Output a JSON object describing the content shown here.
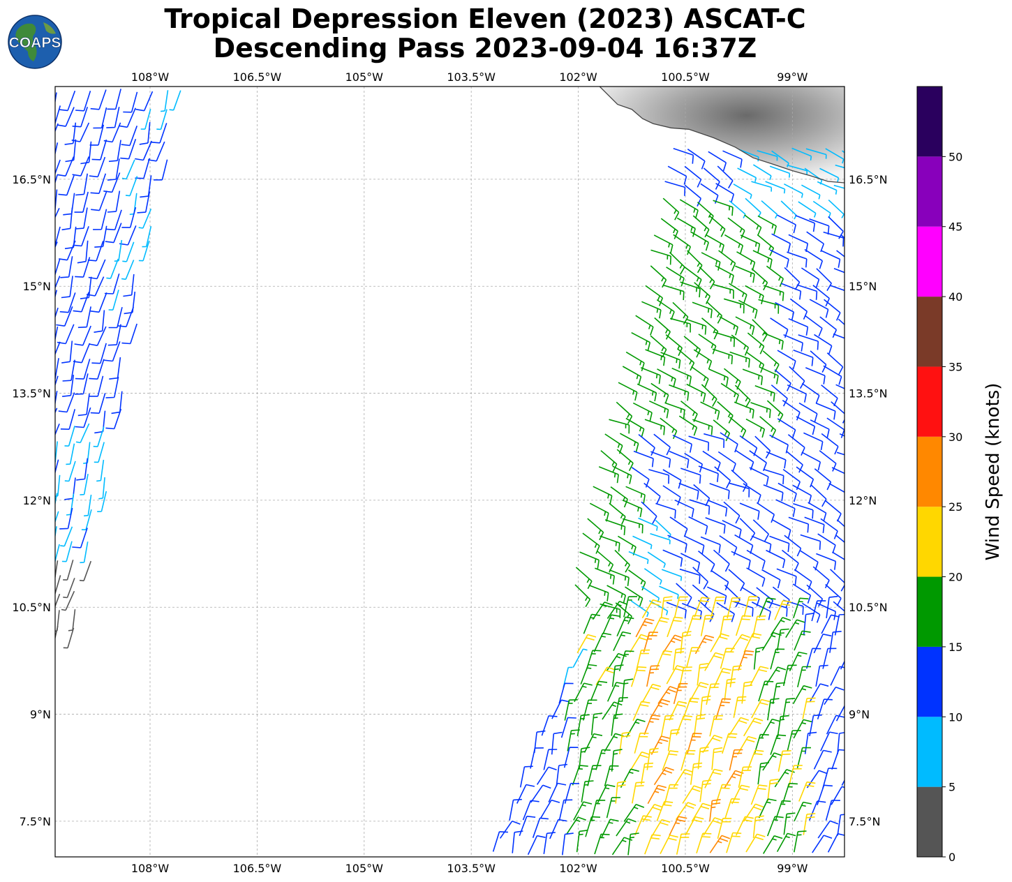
{
  "title": {
    "line1": "Tropical Depression Eleven (2023) ASCAT-C",
    "line2": "Descending Pass 2023-09-04 16:37Z"
  },
  "logo": {
    "text": "COAPS",
    "icon": "globe-icon",
    "ocean_color": "#1d5fae",
    "land_color": "#3f8a3a"
  },
  "map": {
    "lon_range": [
      -109.33,
      -98.27
    ],
    "lat_range": [
      7.0,
      17.8
    ],
    "lon_ticks": [
      {
        "value": -108,
        "label": "108°W"
      },
      {
        "value": -106.5,
        "label": "106.5°W"
      },
      {
        "value": -105,
        "label": "105°W"
      },
      {
        "value": -103.5,
        "label": "103.5°W"
      },
      {
        "value": -102,
        "label": "102°W"
      },
      {
        "value": -100.5,
        "label": "100.5°W"
      },
      {
        "value": -99,
        "label": "99°W"
      }
    ],
    "lat_ticks": [
      {
        "value": 16.5,
        "label": "16.5°N"
      },
      {
        "value": 15,
        "label": "15°N"
      },
      {
        "value": 13.5,
        "label": "13.5°N"
      },
      {
        "value": 12,
        "label": "12°N"
      },
      {
        "value": 10.5,
        "label": "10.5°N"
      },
      {
        "value": 9,
        "label": "9°N"
      },
      {
        "value": 7.5,
        "label": "7.5°N"
      }
    ],
    "grid": true,
    "coastline": [
      [
        -101.7,
        17.8
      ],
      [
        -101.45,
        17.55
      ],
      [
        -101.25,
        17.48
      ],
      [
        -101.1,
        17.35
      ],
      [
        -100.95,
        17.28
      ],
      [
        -100.7,
        17.22
      ],
      [
        -100.45,
        17.2
      ],
      [
        -100.1,
        17.08
      ],
      [
        -99.8,
        16.95
      ],
      [
        -99.55,
        16.8
      ],
      [
        -99.3,
        16.72
      ],
      [
        -99.0,
        16.62
      ],
      [
        -98.75,
        16.55
      ],
      [
        -98.5,
        16.47
      ],
      [
        -98.27,
        16.45
      ]
    ]
  },
  "colorbar": {
    "label": "Wind Speed (knots)",
    "ticks": [
      "0",
      "5",
      "10",
      "15",
      "20",
      "25",
      "30",
      "35",
      "40",
      "45",
      "50"
    ],
    "max": 55,
    "colors": [
      "#555555",
      "#00bbff",
      "#0033ff",
      "#009900",
      "#ffd700",
      "#ff8800",
      "#ff1111",
      "#7a3a28",
      "#ff00ff",
      "#8800bb",
      "#2a005e"
    ]
  },
  "wind_swaths": [
    {
      "name": "west-swath",
      "speed_range": "0-15 knots",
      "dominant": "10-15 knots"
    },
    {
      "name": "east-swath",
      "speed_range": "0-30 knots",
      "dominant": "15-25 knots"
    }
  ]
}
